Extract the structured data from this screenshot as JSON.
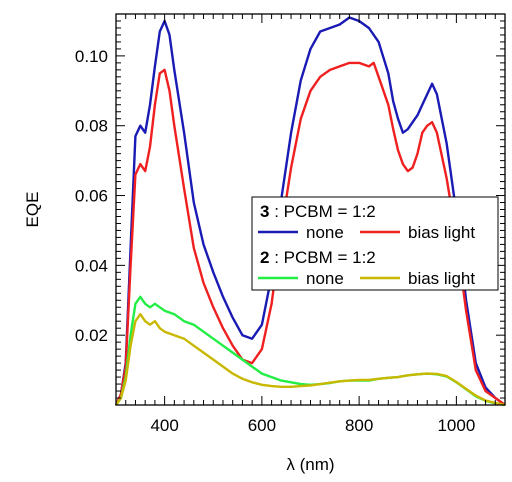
{
  "chart_data": {
    "type": "line",
    "xlabel": "λ (nm)",
    "ylabel": "EQE",
    "xlim": [
      300,
      1100
    ],
    "ylim": [
      0,
      0.112
    ],
    "x_ticks": [
      400,
      600,
      800,
      1000
    ],
    "y_ticks": [
      0.02,
      0.04,
      0.06,
      0.08,
      0.1
    ],
    "x_tick_labels": [
      "400",
      "600",
      "800",
      "1000"
    ],
    "y_tick_labels": [
      "0.02",
      "0.04",
      "0.06",
      "0.08",
      "0.10"
    ],
    "grid": false,
    "legend": {
      "placement": "center-right",
      "groups": [
        {
          "bold": "3",
          "rest": " : PCBM = 1:2",
          "entries": [
            {
              "label": "none",
              "series": 0
            },
            {
              "label": "bias light",
              "series": 1
            }
          ]
        },
        {
          "bold": "2",
          "rest": " : PCBM = 1:2",
          "entries": [
            {
              "label": "none",
              "series": 2
            },
            {
              "label": "bias light",
              "series": 3
            }
          ]
        }
      ]
    },
    "series": [
      {
        "color": "#1a1ab4",
        "x": [
          300,
          310,
          320,
          330,
          340,
          350,
          360,
          370,
          380,
          390,
          400,
          410,
          420,
          440,
          460,
          480,
          500,
          520,
          540,
          560,
          580,
          600,
          620,
          640,
          660,
          680,
          700,
          720,
          740,
          760,
          780,
          800,
          820,
          840,
          860,
          870,
          880,
          890,
          900,
          910,
          920,
          930,
          940,
          950,
          960,
          980,
          1000,
          1020,
          1040,
          1060,
          1080,
          1100
        ],
        "y": [
          0.0,
          0.003,
          0.012,
          0.045,
          0.077,
          0.08,
          0.078,
          0.086,
          0.097,
          0.107,
          0.11,
          0.106,
          0.096,
          0.078,
          0.058,
          0.046,
          0.038,
          0.031,
          0.025,
          0.02,
          0.019,
          0.023,
          0.037,
          0.059,
          0.078,
          0.093,
          0.102,
          0.107,
          0.108,
          0.109,
          0.111,
          0.11,
          0.108,
          0.104,
          0.095,
          0.087,
          0.082,
          0.078,
          0.079,
          0.081,
          0.083,
          0.086,
          0.089,
          0.092,
          0.089,
          0.075,
          0.055,
          0.03,
          0.012,
          0.005,
          0.002,
          0.0
        ]
      },
      {
        "color": "#f02020",
        "x": [
          300,
          310,
          320,
          330,
          340,
          350,
          360,
          370,
          380,
          390,
          400,
          410,
          420,
          440,
          460,
          480,
          500,
          520,
          540,
          560,
          580,
          600,
          620,
          640,
          660,
          680,
          700,
          720,
          740,
          760,
          780,
          800,
          820,
          830,
          840,
          860,
          870,
          880,
          890,
          900,
          910,
          920,
          930,
          940,
          950,
          960,
          980,
          1000,
          1020,
          1040,
          1060,
          1080,
          1100
        ],
        "y": [
          0.0,
          0.003,
          0.011,
          0.04,
          0.066,
          0.069,
          0.067,
          0.074,
          0.086,
          0.095,
          0.096,
          0.09,
          0.08,
          0.062,
          0.045,
          0.035,
          0.028,
          0.022,
          0.017,
          0.013,
          0.012,
          0.016,
          0.029,
          0.05,
          0.068,
          0.082,
          0.09,
          0.094,
          0.096,
          0.097,
          0.098,
          0.098,
          0.097,
          0.098,
          0.094,
          0.086,
          0.079,
          0.073,
          0.069,
          0.067,
          0.068,
          0.072,
          0.078,
          0.08,
          0.081,
          0.078,
          0.065,
          0.048,
          0.027,
          0.01,
          0.004,
          0.002,
          0.0
        ]
      },
      {
        "color": "#22ee44",
        "x": [
          300,
          310,
          320,
          330,
          340,
          350,
          360,
          370,
          380,
          390,
          400,
          420,
          440,
          460,
          480,
          500,
          520,
          540,
          560,
          580,
          600,
          620,
          640,
          660,
          680,
          700,
          720,
          740,
          760,
          780,
          800,
          820,
          840,
          860,
          880,
          900,
          920,
          940,
          960,
          980,
          1000,
          1020,
          1040,
          1060,
          1080,
          1100
        ],
        "y": [
          0.0,
          0.002,
          0.008,
          0.02,
          0.029,
          0.031,
          0.029,
          0.028,
          0.029,
          0.028,
          0.027,
          0.026,
          0.024,
          0.023,
          0.021,
          0.019,
          0.017,
          0.015,
          0.013,
          0.011,
          0.009,
          0.008,
          0.007,
          0.0065,
          0.006,
          0.0058,
          0.006,
          0.0063,
          0.0068,
          0.007,
          0.007,
          0.007,
          0.0075,
          0.0078,
          0.008,
          0.0085,
          0.0088,
          0.009,
          0.0088,
          0.0082,
          0.0065,
          0.0045,
          0.0025,
          0.0012,
          0.0005,
          0.0
        ]
      },
      {
        "color": "#c8b800",
        "x": [
          300,
          310,
          320,
          330,
          340,
          350,
          360,
          370,
          380,
          390,
          400,
          420,
          440,
          460,
          480,
          500,
          520,
          540,
          560,
          580,
          600,
          620,
          640,
          660,
          680,
          700,
          720,
          740,
          760,
          780,
          800,
          820,
          840,
          860,
          880,
          900,
          920,
          940,
          960,
          980,
          1000,
          1020,
          1040,
          1060,
          1080,
          1100
        ],
        "y": [
          0.0,
          0.002,
          0.007,
          0.017,
          0.024,
          0.026,
          0.024,
          0.023,
          0.024,
          0.022,
          0.021,
          0.02,
          0.019,
          0.017,
          0.015,
          0.013,
          0.011,
          0.009,
          0.0075,
          0.0065,
          0.0058,
          0.0054,
          0.0052,
          0.0052,
          0.0054,
          0.0056,
          0.006,
          0.0064,
          0.0068,
          0.007,
          0.0072,
          0.0072,
          0.0075,
          0.0078,
          0.008,
          0.0085,
          0.0088,
          0.009,
          0.0089,
          0.0083,
          0.0066,
          0.0046,
          0.0027,
          0.0013,
          0.0006,
          0.0
        ]
      }
    ]
  }
}
